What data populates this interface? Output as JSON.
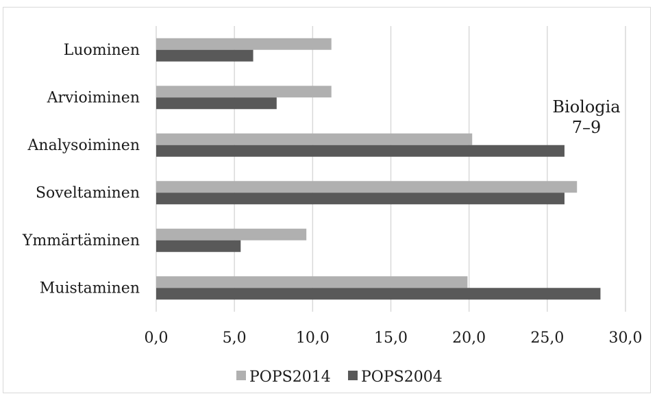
{
  "chart_data": {
    "type": "bar",
    "orientation": "horizontal",
    "categories": [
      "Muistaminen",
      "Ymmärtäminen",
      "Soveltaminen",
      "Analysoiminen",
      "Arvioiminen",
      "Luominen"
    ],
    "series": [
      {
        "name": "POPS2014",
        "color": "#b0b0b0",
        "values": [
          19.9,
          9.6,
          26.9,
          20.2,
          11.2,
          11.2
        ]
      },
      {
        "name": "POPS2004",
        "color": "#595959",
        "values": [
          28.4,
          5.4,
          26.1,
          26.1,
          7.7,
          6.2
        ]
      }
    ],
    "xlim": [
      0,
      30
    ],
    "xticks": [
      0,
      5,
      10,
      15,
      20,
      25,
      30
    ],
    "xtick_labels": [
      "0,0",
      "5,0",
      "10,0",
      "15,0",
      "20,0",
      "25,0",
      "30,0"
    ],
    "grid": true,
    "legend_position": "bottom",
    "annotation": [
      "Biologia",
      "7–9"
    ],
    "title": "",
    "xlabel": "",
    "ylabel": ""
  }
}
